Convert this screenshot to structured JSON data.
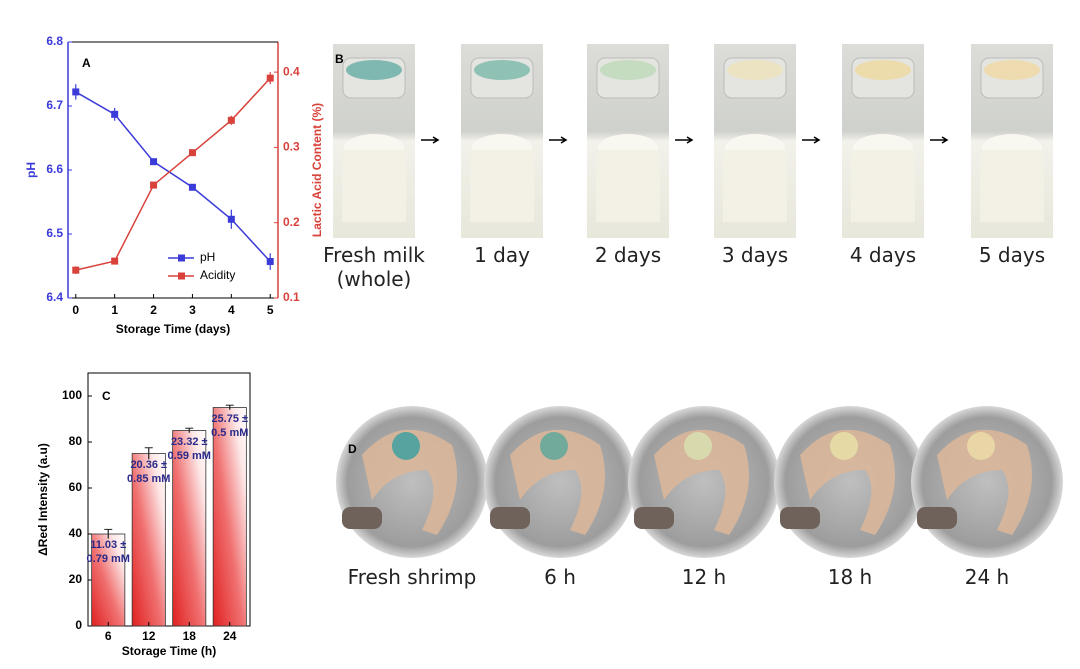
{
  "chart_data": [
    {
      "type": "line",
      "panel_label": "A",
      "x_label": "Storage Time (days)",
      "y_label": "pH",
      "y2_label": "Lactic Acid Content (%)",
      "x": [
        0,
        1,
        2,
        3,
        4,
        5
      ],
      "series": [
        {
          "name": "pH",
          "color": "#3b3bd9",
          "values": [
            6.722,
            6.687,
            6.613,
            6.573,
            6.523,
            6.457
          ],
          "errors": [
            0.012,
            0.01,
            0.003,
            0.003,
            0.015,
            0.013
          ]
        },
        {
          "name": "Acidity",
          "color": "#d9413b",
          "axis": "y2",
          "values": [
            0.137,
            0.149,
            0.25,
            0.293,
            0.336,
            0.392
          ],
          "errors": [
            0.005,
            0.003,
            0.003,
            0.003,
            0.006,
            0.008
          ]
        }
      ],
      "xlim": [
        -0.2,
        5.2
      ],
      "xticks": [
        0,
        1,
        2,
        3,
        4,
        5
      ],
      "ylim": [
        6.4,
        6.8
      ],
      "yticks": [
        6.4,
        6.5,
        6.6,
        6.7,
        6.8
      ],
      "y2lim": [
        0.1,
        0.44
      ],
      "y2ticks": [
        0.1,
        0.2,
        0.3,
        0.4
      ],
      "legend": "lower right"
    },
    {
      "type": "bar",
      "panel_label": "C",
      "x_label": "Storage Time (h)",
      "y_label": "ΔRed Intensity (a.u)",
      "categories": [
        "6",
        "12",
        "18",
        "24"
      ],
      "values": [
        40,
        75,
        85,
        95
      ],
      "errors": [
        2,
        2.5,
        1,
        1
      ],
      "value_labels": [
        "11.03 ± 0.79 mM",
        "20.36 ± 0.85 mM",
        "23.32 ± 0.59 mM",
        "25.75 ± 0.5 mM"
      ],
      "color": "#e02020",
      "ylim": [
        0,
        110
      ],
      "yticks": [
        0,
        20,
        40,
        60,
        80,
        100
      ]
    }
  ],
  "milk_panel": {
    "label": "B",
    "captions": [
      "Fresh milk (whole)",
      "1 day",
      "2 days",
      "3 days",
      "4 days",
      "5 days"
    ]
  },
  "shrimp_panel": {
    "label": "D",
    "captions": [
      "Fresh shrimp",
      "6 h",
      "12 h",
      "18 h",
      "24 h"
    ]
  }
}
